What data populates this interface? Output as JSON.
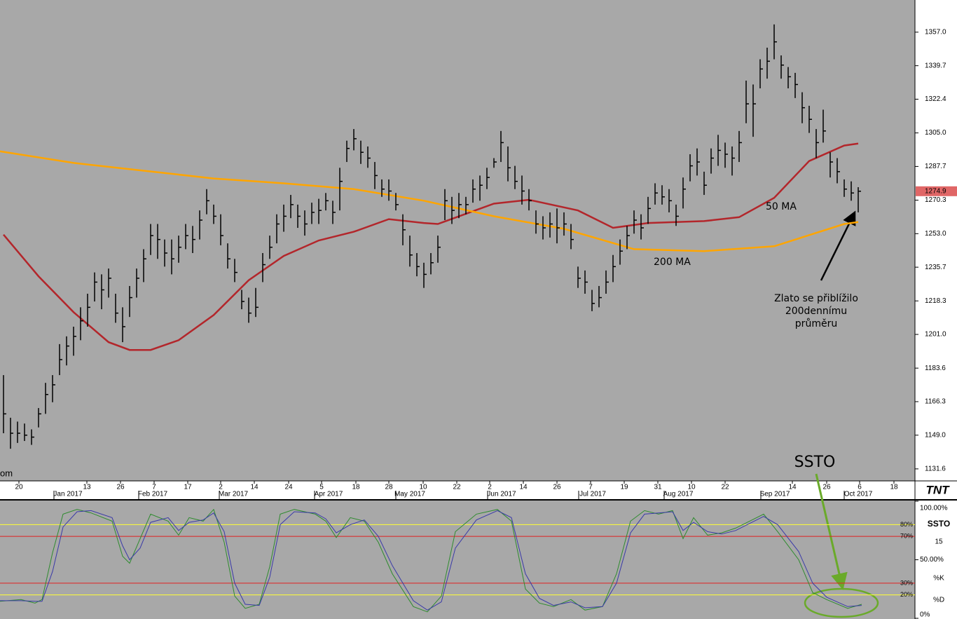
{
  "chart_data": [
    {
      "type": "ohlc",
      "color": "#000000",
      "x": [
        0,
        1,
        2,
        3,
        4,
        5,
        6,
        7,
        8,
        9,
        10,
        11,
        12,
        13,
        14,
        15,
        16,
        17,
        18,
        19,
        20,
        21,
        22,
        23,
        24,
        25,
        26,
        27,
        28,
        29,
        30,
        31,
        32,
        33,
        34,
        35,
        36,
        37,
        38,
        39,
        40,
        41,
        42,
        43,
        44,
        45,
        46,
        47,
        48,
        49,
        50,
        51,
        52,
        53,
        54,
        55,
        56,
        57,
        58,
        59,
        60,
        61,
        62,
        63,
        64,
        65,
        66,
        67,
        68,
        69,
        70,
        71,
        72,
        73,
        74,
        75,
        76,
        77,
        78,
        79,
        80,
        81,
        82,
        83,
        84,
        85,
        86,
        87,
        88,
        89,
        90,
        91,
        92,
        93,
        94,
        95,
        96,
        97,
        98,
        99,
        100,
        101,
        102,
        103,
        104,
        105,
        106,
        107,
        108,
        109,
        110,
        111,
        112,
        113,
        114,
        115,
        116,
        117,
        118,
        119,
        120,
        121,
        122
      ],
      "high": [
        1180,
        1158,
        1156,
        1155,
        1152,
        1163,
        1176,
        1180,
        1196,
        1200,
        1205,
        1215,
        1222,
        1233,
        1232,
        1235,
        1222,
        1215,
        1226,
        1235,
        1245,
        1258,
        1258,
        1250,
        1250,
        1252,
        1258,
        1257,
        1265,
        1276,
        1268,
        1263,
        1248,
        1240,
        1224,
        1220,
        1225,
        1243,
        1252,
        1263,
        1268,
        1273,
        1268,
        1265,
        1269,
        1271,
        1274,
        1270,
        1287,
        1301,
        1307,
        1301,
        1298,
        1290,
        1281,
        1281,
        1274,
        1263,
        1252,
        1243,
        1238,
        1243,
        1252,
        1276,
        1272,
        1274,
        1272,
        1281,
        1283,
        1287,
        1292,
        1306,
        1298,
        1288,
        1283,
        1276,
        1265,
        1262,
        1264,
        1266,
        1264,
        1258,
        1236,
        1234,
        1224,
        1226,
        1234,
        1242,
        1250,
        1257,
        1265,
        1263,
        1272,
        1279,
        1278,
        1276,
        1268,
        1282,
        1294,
        1297,
        1285,
        1297,
        1304,
        1300,
        1298,
        1306,
        1332,
        1330,
        1343,
        1349,
        1361,
        1345,
        1339,
        1336,
        1326,
        1319,
        1307,
        1317,
        1295,
        1292,
        1281,
        1280,
        1277
      ],
      "low": [
        1150,
        1142,
        1145,
        1146,
        1144,
        1153,
        1160,
        1166,
        1180,
        1185,
        1190,
        1198,
        1205,
        1218,
        1214,
        1220,
        1207,
        1197,
        1210,
        1220,
        1228,
        1242,
        1240,
        1236,
        1232,
        1238,
        1245,
        1243,
        1250,
        1263,
        1258,
        1247,
        1235,
        1228,
        1214,
        1207,
        1210,
        1228,
        1240,
        1248,
        1254,
        1261,
        1256,
        1252,
        1258,
        1258,
        1265,
        1258,
        1265,
        1290,
        1296,
        1289,
        1287,
        1276,
        1272,
        1270,
        1265,
        1247,
        1236,
        1231,
        1225,
        1232,
        1238,
        1260,
        1258,
        1261,
        1263,
        1269,
        1270,
        1276,
        1287,
        1290,
        1280,
        1276,
        1268,
        1265,
        1253,
        1250,
        1251,
        1248,
        1252,
        1245,
        1225,
        1222,
        1213,
        1215,
        1222,
        1228,
        1237,
        1245,
        1253,
        1250,
        1258,
        1268,
        1268,
        1264,
        1257,
        1266,
        1280,
        1283,
        1273,
        1284,
        1288,
        1287,
        1283,
        1290,
        1310,
        1303,
        1328,
        1333,
        1343,
        1333,
        1328,
        1323,
        1310,
        1305,
        1292,
        1300,
        1282,
        1279,
        1272,
        1270,
        1264
      ],
      "close": [
        1160,
        1150,
        1150,
        1149,
        1148,
        1160,
        1170,
        1175,
        1188,
        1195,
        1200,
        1208,
        1215,
        1228,
        1224,
        1230,
        1212,
        1205,
        1220,
        1230,
        1240,
        1252,
        1250,
        1243,
        1240,
        1246,
        1252,
        1250,
        1260,
        1270,
        1262,
        1252,
        1240,
        1233,
        1218,
        1212,
        1215,
        1237,
        1246,
        1258,
        1262,
        1268,
        1262,
        1258,
        1264,
        1265,
        1270,
        1264,
        1280,
        1297,
        1302,
        1295,
        1292,
        1283,
        1276,
        1275,
        1268,
        1255,
        1242,
        1236,
        1232,
        1238,
        1246,
        1270,
        1265,
        1268,
        1268,
        1276,
        1278,
        1282,
        1290,
        1300,
        1287,
        1280,
        1275,
        1270,
        1258,
        1256,
        1258,
        1256,
        1258,
        1250,
        1230,
        1228,
        1217,
        1220,
        1228,
        1236,
        1244,
        1252,
        1260,
        1256,
        1266,
        1274,
        1272,
        1270,
        1262,
        1276,
        1288,
        1290,
        1278,
        1292,
        1296,
        1294,
        1292,
        1300,
        1320,
        1320,
        1338,
        1342,
        1352,
        1340,
        1334,
        1330,
        1318,
        1312,
        1300,
        1306,
        1290,
        1285,
        1276,
        1274,
        1274.9
      ],
      "last_price": {
        "value": 1274.9,
        "color": "#e06666"
      },
      "xlim": [
        -0.5,
        130
      ],
      "ylim": [
        1125.4,
        1373.6
      ],
      "yticks": [
        1131.6,
        {
          "value": 1149,
          "label": "1149.0"
        },
        1166.3,
        1183.6,
        {
          "value": 1201,
          "label": "1201.0"
        },
        1218.3,
        1235.7,
        {
          "value": 1253,
          "label": "1253.0"
        },
        1270.3,
        1287.7,
        {
          "value": 1305,
          "label": "1305.0"
        },
        1322.4,
        1339.7,
        {
          "value": 1357,
          "label": "1357.0"
        }
      ],
      "xticks": [
        {
          "value": 2.2,
          "label": "20"
        },
        {
          "value": 11.9,
          "label": "13"
        },
        {
          "value": 16.7,
          "label": "26"
        },
        {
          "value": 21.5,
          "label": "7"
        },
        {
          "value": 26.3,
          "label": "17"
        },
        {
          "value": 31,
          "label": "2"
        },
        {
          "value": 35.8,
          "label": "14"
        },
        {
          "value": 40.7,
          "label": "24"
        },
        {
          "value": 45.4,
          "label": "5"
        },
        {
          "value": 50.3,
          "label": "18"
        },
        {
          "value": 55,
          "label": "28"
        },
        {
          "value": 59.9,
          "label": "10"
        },
        {
          "value": 64.7,
          "label": "22"
        },
        {
          "value": 69.4,
          "label": "2"
        },
        {
          "value": 74.2,
          "label": "14"
        },
        {
          "value": 79,
          "label": "26"
        },
        {
          "value": 83.8,
          "label": "7"
        },
        {
          "value": 88.6,
          "label": "19"
        },
        {
          "value": 93.4,
          "label": "31"
        },
        {
          "value": 98.2,
          "label": "10"
        },
        {
          "value": 103,
          "label": "22"
        },
        {
          "value": 112.6,
          "label": "14"
        },
        {
          "value": 117.5,
          "label": "26"
        },
        {
          "value": 122.2,
          "label": "6"
        },
        {
          "value": 127.1,
          "label": "18"
        }
      ],
      "month_ticks": [
        {
          "value": 9.2,
          "label": "Jan 2017"
        },
        {
          "value": 21.3,
          "label": "Feb 2017"
        },
        {
          "value": 32.8,
          "label": "Mar 2017"
        },
        {
          "value": 46.4,
          "label": "Apr 2017"
        },
        {
          "value": 58,
          "label": "May 2017"
        },
        {
          "value": 71.1,
          "label": "Jun 2017"
        },
        {
          "value": 84.1,
          "label": "Jul 2017"
        },
        {
          "value": 96.3,
          "label": "Aug 2017"
        },
        {
          "value": 110.1,
          "label": "Sep 2017"
        },
        {
          "value": 122,
          "label": "Oct 2017"
        }
      ],
      "series": [
        {
          "name": "50 MA",
          "color": "#b3262b",
          "x": [
            0,
            5,
            10,
            15,
            18,
            21,
            25,
            30,
            35,
            40,
            45,
            50,
            55,
            60,
            62,
            70,
            75,
            82,
            87,
            92,
            100,
            105,
            110,
            115,
            120,
            122
          ],
          "values": [
            1252.5,
            1231,
            1212.5,
            1197,
            1193,
            1193,
            1198,
            1211,
            1229,
            1241.5,
            1249.5,
            1254,
            1260.5,
            1258.5,
            1258,
            1268.5,
            1270.5,
            1265,
            1256,
            1258.5,
            1259.5,
            1261.5,
            1271.5,
            1290.5,
            1298.5,
            1299.5
          ]
        },
        {
          "name": "200 MA",
          "color": "#ffa500",
          "x": [
            -0.5,
            10,
            20,
            30,
            40,
            50,
            60,
            70,
            80,
            90,
            100,
            110,
            120,
            122
          ],
          "values": [
            1295.5,
            1289.5,
            1285.5,
            1281.5,
            1279,
            1276,
            1270,
            1262,
            1255.5,
            1245,
            1244,
            1246.5,
            1258,
            1259
          ]
        }
      ],
      "annotation": [
        "Zlato se přiblížilo",
        "200dennímu",
        "průměru"
      ],
      "watermark": "om",
      "logo": "TNT"
    },
    {
      "type": "stochastic",
      "title": "SSTO",
      "annotation": "SSTO",
      "period": 15,
      "x": [
        -0.5,
        2.5,
        4.5,
        5.5,
        7,
        8.5,
        10.5,
        12.5,
        15.5,
        17,
        18,
        19.5,
        21,
        23.5,
        25,
        26.5,
        28.5,
        30,
        31.5,
        33,
        34.5,
        36.5,
        38,
        39.5,
        41.5,
        44.5,
        46,
        47.5,
        49.5,
        51.5,
        53.5,
        55.5,
        58.5,
        60.5,
        62.5,
        64.5,
        67.5,
        70.5,
        72.5,
        74.5,
        76.5,
        78.5,
        81,
        83,
        85.5,
        87.5,
        89.5,
        91.5,
        93.5,
        95.5,
        97,
        98.5,
        100.5,
        102.5,
        104.5,
        106.5,
        108.5,
        110.5,
        113.5,
        115.5,
        117.5,
        120.5,
        122.5
      ],
      "series": [
        {
          "name": "%K",
          "color": "#2e8b2e",
          "values": [
            14.5,
            16,
            13,
            16,
            56,
            89,
            93,
            90,
            83,
            53,
            47,
            68,
            89,
            83,
            71,
            86,
            83,
            93,
            65,
            19,
            8.5,
            12,
            44,
            89,
            93,
            89,
            83,
            69,
            86,
            83,
            65,
            38,
            10,
            5.5,
            19,
            74,
            89,
            93,
            83,
            25,
            13,
            10,
            16,
            7,
            10,
            38,
            83,
            92,
            89,
            92,
            68,
            86,
            71,
            73,
            77,
            83,
            89,
            74,
            50,
            22,
            16,
            8.5,
            12
          ]
        },
        {
          "name": "%D",
          "color": "#3a3aa8",
          "values": [
            15,
            15,
            14.5,
            14.5,
            40,
            78,
            91,
            92,
            86,
            62,
            50,
            60,
            82,
            86,
            75,
            82,
            84,
            90,
            74,
            30,
            12,
            11,
            35,
            80,
            91,
            90,
            85,
            73,
            80,
            84,
            70,
            45,
            15,
            7,
            14,
            60,
            84,
            92,
            86,
            38,
            17,
            11,
            14,
            9,
            10,
            30,
            73,
            89,
            90,
            91,
            75,
            82,
            74,
            72,
            75,
            81,
            87,
            80,
            57,
            30,
            18,
            10,
            11
          ]
        }
      ],
      "levels": [
        {
          "value": 80,
          "label": "80%",
          "color": "#ffff33"
        },
        {
          "value": 70,
          "label": "70%",
          "color": "#e02020"
        },
        {
          "value": 30,
          "label": "30%",
          "color": "#e02020"
        },
        {
          "value": 20,
          "label": "20%",
          "color": "#ffff33"
        }
      ],
      "xlim": [
        -0.5,
        130
      ],
      "ylim": [
        -0.6,
        100.6
      ],
      "yticks": [
        {
          "value": 100,
          "label": "100.00%"
        },
        {
          "value": 50,
          "label": "50.00%"
        },
        {
          "value": 0,
          "label": "0%"
        }
      ]
    }
  ]
}
